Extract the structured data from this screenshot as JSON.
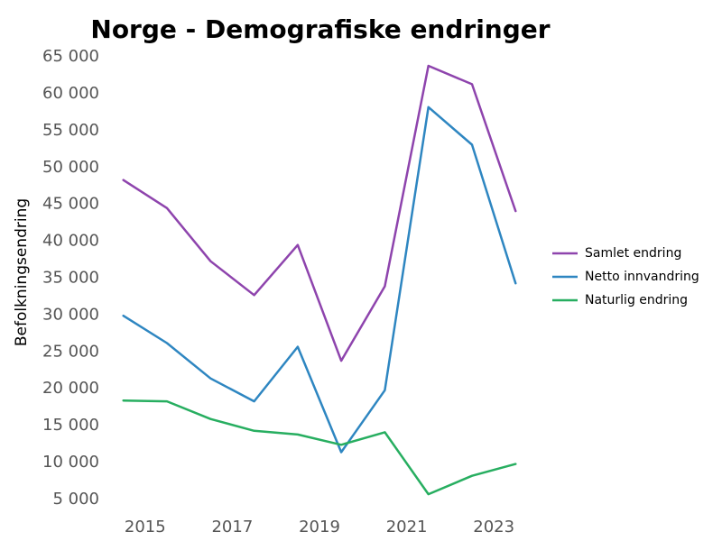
{
  "chart_data": {
    "type": "line",
    "title": "Norge - Demografiske endringer",
    "xlabel": "",
    "ylabel": "Befolkningsendring",
    "x": [
      2014.5,
      2015.5,
      2016.5,
      2017.5,
      2018.5,
      2019.5,
      2020.5,
      2021.5,
      2022.5,
      2023.5
    ],
    "xticks": [
      2015,
      2017,
      2019,
      2021,
      2023
    ],
    "xtick_labels": [
      "2015",
      "2017",
      "2019",
      "2021",
      "2023"
    ],
    "xlim": [
      2014.3,
      2023.7
    ],
    "ylim": [
      4000,
      66000
    ],
    "yticks": [
      5000,
      10000,
      15000,
      20000,
      25000,
      30000,
      35000,
      40000,
      45000,
      50000,
      55000,
      60000,
      65000
    ],
    "ytick_labels": [
      "5 000",
      "10 000",
      "15 000",
      "20 000",
      "25 000",
      "30 000",
      "35 000",
      "40 000",
      "45 000",
      "50 000",
      "55 000",
      "60 000",
      "65 000"
    ],
    "grid": false,
    "legend_position": "right",
    "series": [
      {
        "name": "Samlet endring",
        "color": "#8e44ad",
        "values": [
          48300,
          44500,
          37300,
          32700,
          39500,
          23800,
          33900,
          63800,
          61300,
          44100
        ]
      },
      {
        "name": "Netto innvandring",
        "color": "#2e86c1",
        "values": [
          29900,
          26200,
          21400,
          18300,
          25700,
          11400,
          19800,
          58200,
          53100,
          34300
        ]
      },
      {
        "name": "Naturlig endring",
        "color": "#27ae60",
        "values": [
          18400,
          18300,
          15900,
          14300,
          13800,
          12400,
          14100,
          5700,
          8200,
          9800
        ]
      }
    ]
  }
}
